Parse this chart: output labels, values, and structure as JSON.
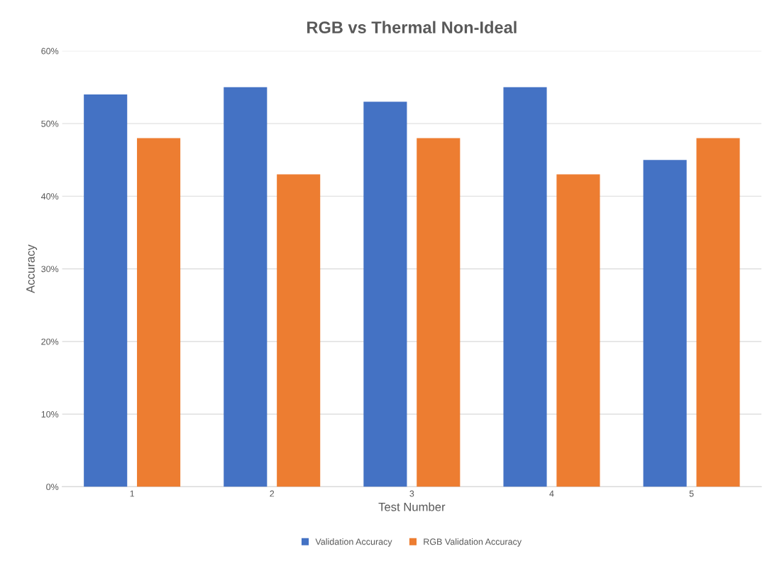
{
  "chart_data": {
    "type": "bar",
    "title": "RGB vs Thermal Non-Ideal",
    "xlabel": "Test Number",
    "ylabel": "Accuracy",
    "categories": [
      "1",
      "2",
      "3",
      "4",
      "5"
    ],
    "series": [
      {
        "name": "Validation Accuracy",
        "color": "#4472c4",
        "values": [
          54,
          55,
          53,
          55,
          45
        ]
      },
      {
        "name": "RGB Validation Accuracy",
        "color": "#ed7d31",
        "values": [
          48,
          43,
          48,
          43,
          48
        ]
      }
    ],
    "ylim": [
      0,
      60
    ],
    "yticks": [
      {
        "value": 0,
        "label": "0%"
      },
      {
        "value": 10,
        "label": "10%"
      },
      {
        "value": 20,
        "label": "20%"
      },
      {
        "value": 30,
        "label": "30%"
      },
      {
        "value": 40,
        "label": "40%"
      },
      {
        "value": 50,
        "label": "50%"
      },
      {
        "value": 60,
        "label": "60%"
      }
    ],
    "grid": "y",
    "legend": "bottom"
  }
}
